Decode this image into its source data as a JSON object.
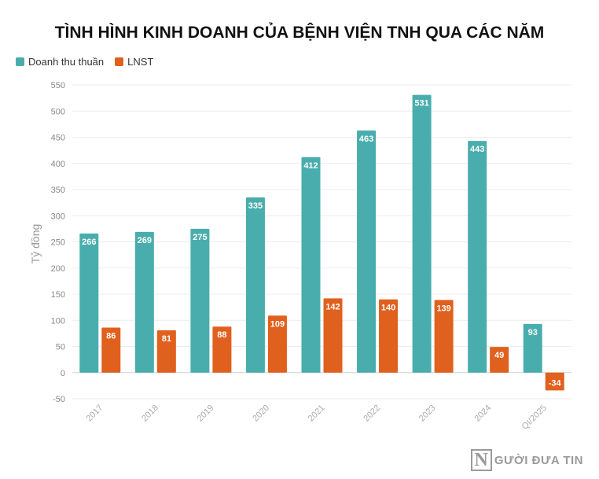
{
  "chart_data": {
    "type": "bar",
    "title": "TÌNH HÌNH KINH DOANH CỦA BỆNH VIỆN TNH QUA CÁC NĂM",
    "ylabel": "Tỷ đồng",
    "xlabel": "",
    "categories": [
      "2017",
      "2018",
      "2019",
      "2020",
      "2021",
      "2022",
      "2023",
      "2024",
      "QI/2025"
    ],
    "series": [
      {
        "name": "Doanh thu thuần",
        "color": "#4aadad",
        "values": [
          266,
          269,
          275,
          335,
          412,
          463,
          531,
          443,
          93
        ]
      },
      {
        "name": "LNST",
        "color": "#e0601e",
        "values": [
          86,
          81,
          88,
          109,
          142,
          140,
          139,
          49,
          -34
        ]
      }
    ],
    "ylim": [
      -50,
      550
    ],
    "yticks": [
      -50,
      0,
      50,
      100,
      150,
      200,
      250,
      300,
      350,
      400,
      450,
      500,
      550
    ],
    "grid": true,
    "legend_position": "top-left"
  },
  "watermark": {
    "mark": "N",
    "text": "GƯỜI ĐƯA TIN"
  }
}
